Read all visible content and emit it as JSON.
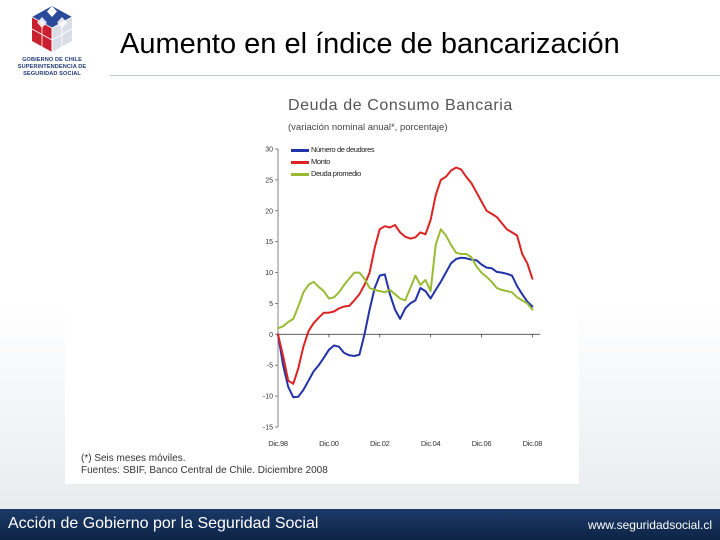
{
  "header": {
    "logo_lines": [
      "GOBIERNO DE CHILE",
      "SUPERINTENDENCIA DE",
      "SEGURIDAD SOCIAL"
    ],
    "title": "Aumento en el índice de bancarización"
  },
  "footer": {
    "left_text": "Acción de Gobierno por la Seguridad Social",
    "right_text": "www.seguridadsocial.cl"
  },
  "colors": {
    "numero_deudores": "#2233aa",
    "monto": "#dd2222",
    "deuda_promedio": "#99bb33",
    "footer_bg": "#1b3a68"
  },
  "chart_data": {
    "type": "line",
    "title": "Deuda de Consumo Bancaria",
    "subtitle": "(variación nominal anual*, porcentaje)",
    "ylim": [
      -15,
      30
    ],
    "yticks": [
      30,
      25,
      20,
      15,
      10,
      5,
      0,
      -5,
      -10,
      -15
    ],
    "xlim": [
      0,
      10.3
    ],
    "xticks": [
      0,
      2,
      4,
      6,
      8,
      10
    ],
    "xtick_labels": [
      "Dic.98",
      "Dic.00",
      "Dic.02",
      "Dic.04",
      "Dic.06",
      "Dic.08"
    ],
    "legend_position": "top-left",
    "series": [
      {
        "name": "Número de deudores",
        "color": "#2233aa",
        "x": [
          0,
          0.2,
          0.4,
          0.6,
          0.8,
          1.0,
          1.2,
          1.4,
          1.6,
          1.8,
          2.0,
          2.2,
          2.4,
          2.6,
          2.8,
          3.0,
          3.2,
          3.4,
          3.6,
          3.8,
          4.0,
          4.2,
          4.4,
          4.6,
          4.8,
          5.0,
          5.2,
          5.4,
          5.6,
          5.8,
          6.0,
          6.2,
          6.4,
          6.6,
          6.8,
          7.0,
          7.2,
          7.4,
          7.6,
          7.8,
          8.0,
          8.2,
          8.4,
          8.6,
          8.8,
          9.0,
          9.2,
          9.4,
          9.6,
          9.8,
          10.0
        ],
        "values": [
          0,
          -5,
          -8.5,
          -10.2,
          -10.1,
          -9,
          -7.5,
          -6,
          -5,
          -3.8,
          -2.5,
          -1.8,
          -2,
          -3,
          -3.4,
          -3.5,
          -3.3,
          0,
          4,
          7.5,
          9.5,
          9.7,
          6.5,
          4,
          2.5,
          4.2,
          5,
          5.5,
          7.5,
          7,
          5.8,
          7.2,
          8.5,
          10,
          11.5,
          12.2,
          12.4,
          12.3,
          12.1,
          12,
          11.3,
          10.8,
          10.7,
          10.1,
          10,
          9.8,
          9.5,
          7.8,
          6.5,
          5.3,
          4.5
        ]
      },
      {
        "name": "Monto",
        "color": "#dd2222",
        "x": [
          0,
          0.2,
          0.4,
          0.6,
          0.8,
          1.0,
          1.2,
          1.4,
          1.6,
          1.8,
          2.0,
          2.2,
          2.4,
          2.6,
          2.8,
          3.0,
          3.2,
          3.4,
          3.6,
          3.8,
          4.0,
          4.2,
          4.4,
          4.6,
          4.8,
          5.0,
          5.2,
          5.4,
          5.6,
          5.8,
          6.0,
          6.2,
          6.4,
          6.6,
          6.8,
          7.0,
          7.2,
          7.4,
          7.6,
          7.8,
          8.0,
          8.2,
          8.4,
          8.6,
          8.8,
          9.0,
          9.2,
          9.4,
          9.6,
          9.8,
          10.0
        ],
        "values": [
          0,
          -3.5,
          -7.5,
          -8,
          -5.5,
          -2,
          0.5,
          1.8,
          2.7,
          3.5,
          3.5,
          3.7,
          4.2,
          4.5,
          4.6,
          5.5,
          6.5,
          8,
          10,
          14,
          17,
          17.5,
          17.3,
          17.7,
          16.5,
          15.8,
          15.5,
          15.7,
          16.5,
          16.2,
          18.5,
          22.5,
          25,
          25.5,
          26.5,
          27,
          26.7,
          25.5,
          24.5,
          23,
          21.5,
          20,
          19.5,
          19,
          18,
          17,
          16.5,
          16,
          13,
          11.5,
          9
        ]
      },
      {
        "name": "Deuda promedio",
        "color": "#99bb33",
        "x": [
          0,
          0.2,
          0.4,
          0.6,
          0.8,
          1.0,
          1.2,
          1.4,
          1.6,
          1.8,
          2.0,
          2.2,
          2.4,
          2.6,
          2.8,
          3.0,
          3.2,
          3.4,
          3.6,
          3.8,
          4.0,
          4.2,
          4.4,
          4.6,
          4.8,
          5.0,
          5.2,
          5.4,
          5.6,
          5.8,
          6.0,
          6.2,
          6.4,
          6.6,
          6.8,
          7.0,
          7.2,
          7.4,
          7.6,
          7.8,
          8.0,
          8.2,
          8.4,
          8.6,
          8.8,
          9.0,
          9.2,
          9.4,
          9.6,
          9.8,
          10.0
        ],
        "values": [
          1,
          1.3,
          2,
          2.5,
          4.5,
          6.8,
          8,
          8.5,
          7.7,
          7,
          5.8,
          6,
          6.8,
          8,
          9,
          10,
          10,
          9,
          7.5,
          7.2,
          7,
          6.8,
          7.2,
          6.5,
          5.8,
          5.5,
          7.5,
          9.5,
          8,
          8.8,
          7,
          14.5,
          17,
          16,
          14.5,
          13.2,
          13,
          13,
          12.5,
          11,
          10,
          9.3,
          8.5,
          7.5,
          7.2,
          7,
          6.8,
          6,
          5.5,
          5,
          4
        ]
      }
    ],
    "footnotes": [
      "(*) Seis meses móviles.",
      "Fuentes: SBIF, Banco Central de Chile. Diciembre 2008"
    ]
  }
}
